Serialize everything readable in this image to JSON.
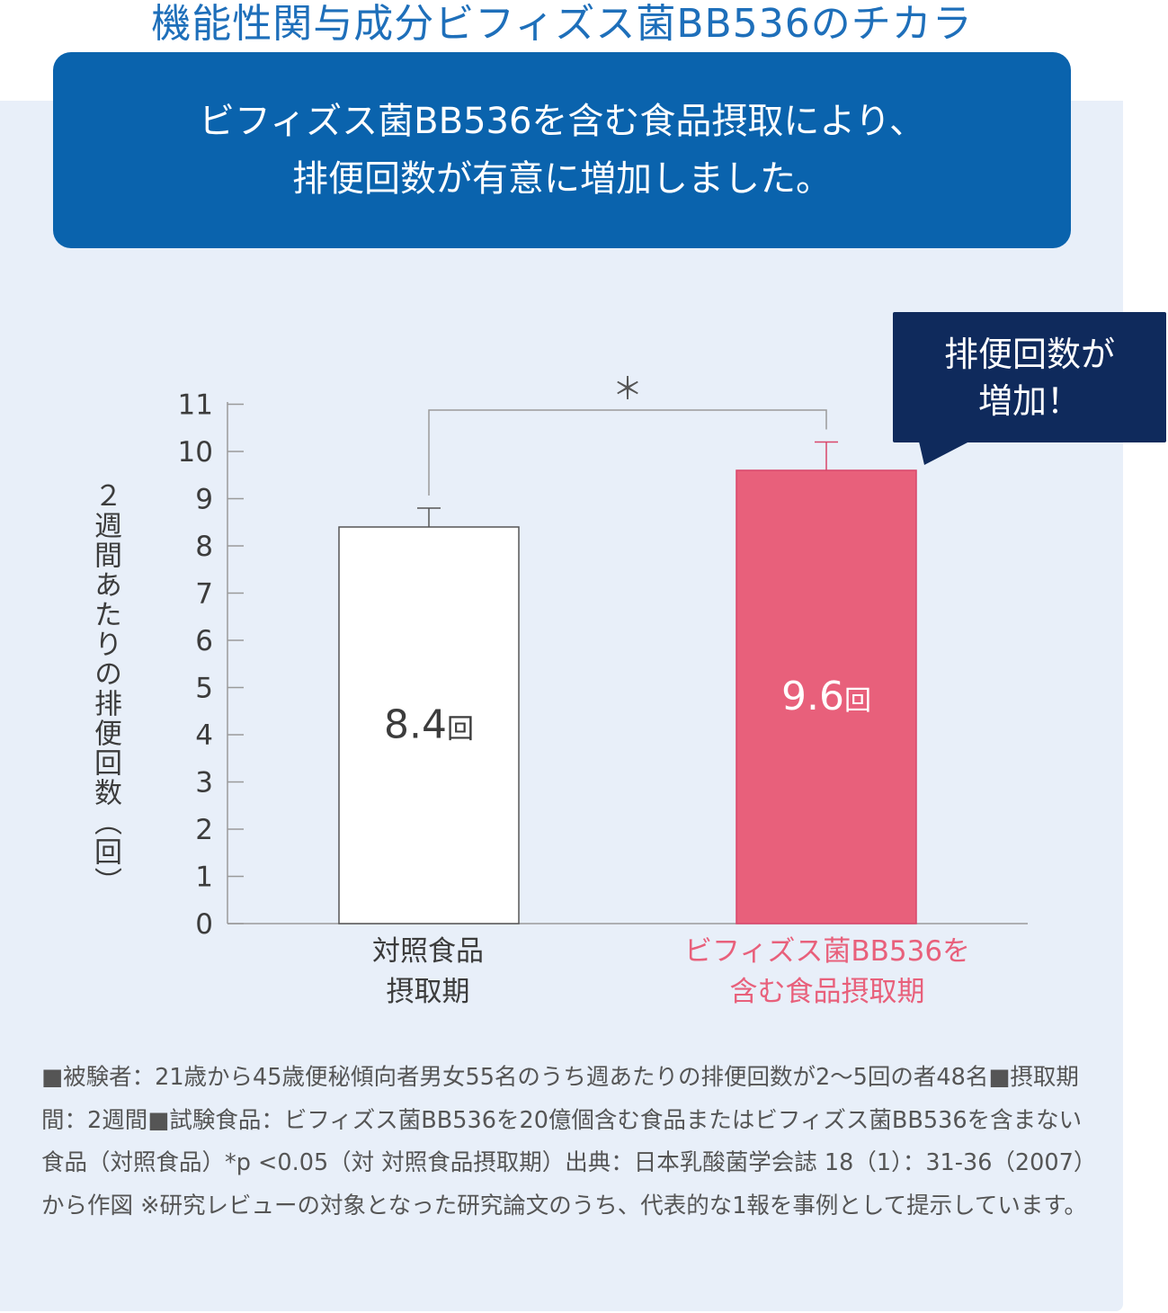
{
  "top_title": "機能性関与成分ビフィズス菌BB536のチカラ",
  "headline": {
    "line1": "ビフィズス菌BB536を含む食品摂取により、",
    "line2": "排便回数が有意に増加しました。"
  },
  "callout": {
    "line1": "排便回数が",
    "line2": "増加！"
  },
  "significance_mark": "＊",
  "footnote": "■被験者：21歳から45歳便秘傾向者男女55名のうち週あたりの排便回数が2〜5回の者48名■摂取期間：2週間■試験食品：ビフィズス菌BB536を20億個含む食品またはビフィズス菌BB536を含まない食品（対照食品）*p <0.05（対 対照食品摂取期）出典：日本乳酸菌学会誌 18（1）：31-36（2007）から作図 ※研究レビューの対象となった研究論文のうち、代表的な1報を事例として提示しています。",
  "chart_data": {
    "type": "bar",
    "ylabel": "２週間あたりの排便回数（回）",
    "ylim": [
      0,
      11
    ],
    "yticks": [
      "0",
      "1",
      "2",
      "3",
      "4",
      "5",
      "6",
      "7",
      "8",
      "9",
      "10",
      "11"
    ],
    "categories": [
      {
        "line1": "対照食品",
        "line2": "摂取期",
        "color": "#3c3c3c"
      },
      {
        "line1": "ビフィズス菌BB536を",
        "line2": "含む食品摂取期",
        "color": "#e8607b"
      }
    ],
    "values": [
      8.4,
      9.6
    ],
    "error_upper": [
      8.8,
      10.2
    ],
    "bar_labels": [
      {
        "num": "8.4",
        "unit": "回"
      },
      {
        "num": "9.6",
        "unit": "回"
      }
    ],
    "bar_colors": [
      "#ffffff",
      "#e8607b"
    ],
    "bar_label_colors": [
      "#3c3c3c",
      "#ffffff"
    ],
    "grid": false,
    "significance": "p<0.05 between bars"
  }
}
